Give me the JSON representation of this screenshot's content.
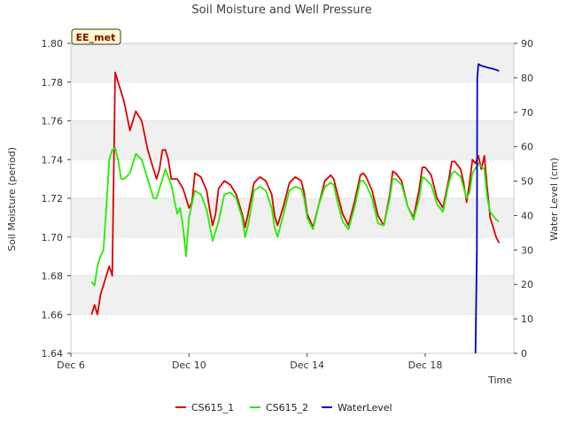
{
  "chart_data": {
    "type": "line",
    "title": "Soil Moisture and Well Pressure",
    "xlabel": "Time",
    "ylabel": "Soil Moisture (period)",
    "y2label": "Water Level (cm)",
    "badge": "EE_met",
    "x_ticks": [
      "Dec 6",
      "Dec 10",
      "Dec 14",
      "Dec 18"
    ],
    "x_tick_days": [
      6,
      10,
      14,
      18
    ],
    "xlim": [
      6,
      21
    ],
    "ylim": [
      1.64,
      1.8
    ],
    "y_ticks": [
      "1.64",
      "1.66",
      "1.68",
      "1.70",
      "1.72",
      "1.74",
      "1.76",
      "1.78",
      "1.80"
    ],
    "y2lim": [
      0,
      90
    ],
    "y2_ticks": [
      "0",
      "10",
      "20",
      "30",
      "40",
      "50",
      "60",
      "70",
      "80",
      "90"
    ],
    "grid": "horizontal bands",
    "legend": "bottom",
    "series": [
      {
        "name": "CS615_1",
        "color": "#dd0000",
        "axis": "left",
        "x": [
          6.7,
          6.8,
          6.9,
          7.0,
          7.1,
          7.2,
          7.3,
          7.4,
          7.5,
          7.6,
          7.7,
          7.8,
          8.0,
          8.2,
          8.4,
          8.6,
          8.8,
          8.9,
          9.0,
          9.1,
          9.2,
          9.3,
          9.4,
          9.5,
          9.6,
          9.8,
          10.0,
          10.1,
          10.2,
          10.4,
          10.6,
          10.7,
          10.8,
          10.9,
          11.0,
          11.2,
          11.4,
          11.6,
          11.8,
          11.9,
          12.0,
          12.2,
          12.4,
          12.6,
          12.8,
          12.9,
          13.0,
          13.2,
          13.4,
          13.6,
          13.8,
          13.9,
          14.0,
          14.2,
          14.4,
          14.6,
          14.8,
          14.9,
          15.0,
          15.2,
          15.4,
          15.6,
          15.8,
          15.9,
          16.0,
          16.2,
          16.4,
          16.6,
          16.8,
          16.9,
          17.0,
          17.2,
          17.4,
          17.6,
          17.8,
          17.9,
          18.0,
          18.2,
          18.4,
          18.6,
          18.8,
          18.9,
          19.0,
          19.1,
          19.2,
          19.3,
          19.4,
          19.5,
          19.6,
          19.7,
          19.8,
          19.9,
          20.0,
          20.1,
          20.2,
          20.3,
          20.4,
          20.5
        ],
        "values": [
          1.66,
          1.665,
          1.66,
          1.67,
          1.675,
          1.68,
          1.685,
          1.68,
          1.785,
          1.78,
          1.775,
          1.77,
          1.755,
          1.765,
          1.76,
          1.745,
          1.735,
          1.73,
          1.735,
          1.745,
          1.745,
          1.74,
          1.73,
          1.73,
          1.73,
          1.725,
          1.715,
          1.718,
          1.733,
          1.731,
          1.724,
          1.714,
          1.706,
          1.712,
          1.725,
          1.729,
          1.727,
          1.722,
          1.712,
          1.705,
          1.712,
          1.728,
          1.731,
          1.729,
          1.722,
          1.711,
          1.706,
          1.716,
          1.728,
          1.731,
          1.729,
          1.723,
          1.712,
          1.705,
          1.717,
          1.729,
          1.732,
          1.73,
          1.724,
          1.712,
          1.706,
          1.718,
          1.732,
          1.733,
          1.731,
          1.724,
          1.711,
          1.706,
          1.722,
          1.734,
          1.733,
          1.729,
          1.716,
          1.71,
          1.725,
          1.736,
          1.736,
          1.732,
          1.72,
          1.715,
          1.73,
          1.739,
          1.739,
          1.737,
          1.735,
          1.728,
          1.718,
          1.728,
          1.74,
          1.738,
          1.742,
          1.735,
          1.742,
          1.725,
          1.71,
          1.705,
          1.7,
          1.697
        ]
      },
      {
        "name": "CS615_2",
        "color": "#22ee00",
        "axis": "left",
        "x": [
          6.7,
          6.8,
          6.9,
          7.0,
          7.1,
          7.2,
          7.3,
          7.4,
          7.5,
          7.6,
          7.7,
          7.8,
          8.0,
          8.2,
          8.4,
          8.6,
          8.8,
          8.9,
          9.0,
          9.2,
          9.4,
          9.6,
          9.7,
          9.8,
          9.9,
          10.0,
          10.2,
          10.4,
          10.6,
          10.7,
          10.8,
          11.0,
          11.2,
          11.4,
          11.6,
          11.8,
          11.9,
          12.0,
          12.2,
          12.4,
          12.6,
          12.8,
          12.9,
          13.0,
          13.2,
          13.4,
          13.6,
          13.8,
          13.9,
          14.0,
          14.2,
          14.4,
          14.6,
          14.8,
          14.9,
          15.0,
          15.2,
          15.4,
          15.6,
          15.8,
          15.9,
          16.0,
          16.2,
          16.4,
          16.6,
          16.8,
          16.9,
          17.0,
          17.2,
          17.4,
          17.6,
          17.8,
          17.9,
          18.0,
          18.2,
          18.4,
          18.6,
          18.8,
          18.9,
          19.0,
          19.2,
          19.4,
          19.5,
          19.6,
          19.8,
          20.0,
          20.1,
          20.2,
          20.3,
          20.4,
          20.5
        ],
        "values": [
          1.677,
          1.675,
          1.685,
          1.69,
          1.693,
          1.715,
          1.74,
          1.745,
          1.746,
          1.74,
          1.73,
          1.73,
          1.733,
          1.743,
          1.74,
          1.73,
          1.72,
          1.72,
          1.725,
          1.735,
          1.727,
          1.712,
          1.715,
          1.705,
          1.69,
          1.71,
          1.724,
          1.722,
          1.714,
          1.706,
          1.698,
          1.708,
          1.722,
          1.723,
          1.72,
          1.71,
          1.7,
          1.706,
          1.724,
          1.726,
          1.724,
          1.715,
          1.705,
          1.7,
          1.712,
          1.724,
          1.726,
          1.725,
          1.72,
          1.71,
          1.704,
          1.717,
          1.726,
          1.728,
          1.727,
          1.72,
          1.708,
          1.704,
          1.715,
          1.729,
          1.729,
          1.727,
          1.72,
          1.707,
          1.706,
          1.72,
          1.73,
          1.73,
          1.727,
          1.716,
          1.709,
          1.72,
          1.731,
          1.73,
          1.727,
          1.717,
          1.713,
          1.728,
          1.733,
          1.734,
          1.731,
          1.72,
          1.723,
          1.733,
          1.738,
          1.735,
          1.72,
          1.713,
          1.711,
          1.709,
          1.708
        ]
      },
      {
        "name": "WaterLevel",
        "color": "#0000cc",
        "axis": "right",
        "x": [
          19.7,
          19.75,
          19.76,
          19.8,
          19.9,
          20.0,
          20.1,
          20.2,
          20.3,
          20.4,
          20.5
        ],
        "values": [
          0,
          30,
          80,
          84,
          83.5,
          83.3,
          83,
          82.8,
          82.6,
          82.3,
          82
        ]
      }
    ]
  }
}
